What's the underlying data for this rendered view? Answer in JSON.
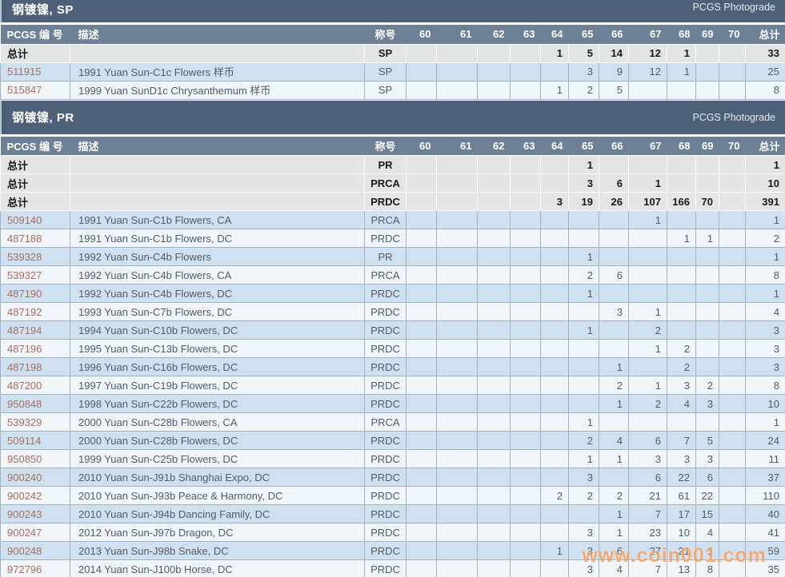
{
  "watermark": "www.coin001.com",
  "colors": {
    "section_bar": "#4d6078",
    "table_header": "#6d8096",
    "row_blue": "#cfe0f0",
    "row_light": "#f0f5fa",
    "row_total": "#e3e4e6",
    "pcgs_number_link": "#a8705b",
    "watermark_orange": "#f4964a"
  },
  "columns": [
    "PCGS 编 号",
    "描述",
    "称号",
    "60",
    "61",
    "62",
    "63",
    "64",
    "65",
    "66",
    "67",
    "68",
    "69",
    "70",
    "总计"
  ],
  "column_keys": [
    "pcgs-number",
    "description",
    "designation",
    "60",
    "61",
    "62",
    "63",
    "64",
    "65",
    "66",
    "67",
    "68",
    "69",
    "70",
    "total"
  ],
  "sections": [
    {
      "title": "钢镀镍, SP",
      "photograde_label": "PCGS Photograde",
      "total_rows": [
        {
          "label": "总计",
          "desc": "",
          "designation": "SP",
          "grades": [
            "",
            "",
            "",
            "",
            "1",
            "5",
            "14",
            "12",
            "1",
            "",
            ""
          ],
          "total": "33"
        }
      ],
      "rows": [
        {
          "id": "511915",
          "desc": "1991 Yuan Sun-C1c Flowers 样币",
          "designation": "SP",
          "grades": [
            "",
            "",
            "",
            "",
            "",
            "3",
            "9",
            "12",
            "1",
            "",
            ""
          ],
          "total": "25"
        },
        {
          "id": "515847",
          "desc": "1999 Yuan SunD1c Chrysanthemum 样币",
          "designation": "SP",
          "grades": [
            "",
            "",
            "",
            "",
            "1",
            "2",
            "5",
            "",
            "",
            "",
            ""
          ],
          "total": "8"
        }
      ]
    },
    {
      "title": "钢镀镍, PR",
      "photograde_label": "PCGS Photograde",
      "total_rows": [
        {
          "label": "总计",
          "desc": "",
          "designation": "PR",
          "grades": [
            "",
            "",
            "",
            "",
            "",
            "1",
            "",
            "",
            "",
            "",
            ""
          ],
          "total": "1"
        },
        {
          "label": "总计",
          "desc": "",
          "designation": "PRCA",
          "grades": [
            "",
            "",
            "",
            "",
            "",
            "3",
            "6",
            "1",
            "",
            "",
            ""
          ],
          "total": "10"
        },
        {
          "label": "总计",
          "desc": "",
          "designation": "PRDC",
          "grades": [
            "",
            "",
            "",
            "",
            "3",
            "19",
            "26",
            "107",
            "166",
            "70",
            ""
          ],
          "total": "391"
        }
      ],
      "rows": [
        {
          "id": "509140",
          "desc": "1991 Yuan Sun-C1b Flowers, CA",
          "designation": "PRCA",
          "grades": [
            "",
            "",
            "",
            "",
            "",
            "",
            "",
            "1",
            "",
            "",
            ""
          ],
          "total": "1"
        },
        {
          "id": "487188",
          "desc": "1991 Yuan Sun-C1b Flowers, DC",
          "designation": "PRDC",
          "grades": [
            "",
            "",
            "",
            "",
            "",
            "",
            "",
            "",
            "1",
            "1",
            ""
          ],
          "total": "2"
        },
        {
          "id": "539328",
          "desc": "1992 Yuan Sun-C4b Flowers",
          "designation": "PR",
          "grades": [
            "",
            "",
            "",
            "",
            "",
            "1",
            "",
            "",
            "",
            "",
            ""
          ],
          "total": "1"
        },
        {
          "id": "539327",
          "desc": "1992 Yuan Sun-C4b Flowers, CA",
          "designation": "PRCA",
          "grades": [
            "",
            "",
            "",
            "",
            "",
            "2",
            "6",
            "",
            "",
            "",
            ""
          ],
          "total": "8"
        },
        {
          "id": "487190",
          "desc": "1992 Yuan Sun-C4b Flowers, DC",
          "designation": "PRDC",
          "grades": [
            "",
            "",
            "",
            "",
            "",
            "1",
            "",
            "",
            "",
            "",
            ""
          ],
          "total": "1"
        },
        {
          "id": "487192",
          "desc": "1993 Yuan Sun-C7b Flowers, DC",
          "designation": "PRDC",
          "grades": [
            "",
            "",
            "",
            "",
            "",
            "",
            "3",
            "1",
            "",
            "",
            ""
          ],
          "total": "4"
        },
        {
          "id": "487194",
          "desc": "1994 Yuan Sun-C10b Flowers, DC",
          "designation": "PRDC",
          "grades": [
            "",
            "",
            "",
            "",
            "",
            "1",
            "",
            "2",
            "",
            "",
            ""
          ],
          "total": "3"
        },
        {
          "id": "487196",
          "desc": "1995 Yuan Sun-C13b Flowers, DC",
          "designation": "PRDC",
          "grades": [
            "",
            "",
            "",
            "",
            "",
            "",
            "",
            "1",
            "2",
            "",
            ""
          ],
          "total": "3"
        },
        {
          "id": "487198",
          "desc": "1996 Yuan Sun-C16b Flowers, DC",
          "designation": "PRDC",
          "grades": [
            "",
            "",
            "",
            "",
            "",
            "",
            "1",
            "",
            "2",
            "",
            ""
          ],
          "total": "3"
        },
        {
          "id": "487200",
          "desc": "1997 Yuan Sun-C19b Flowers, DC",
          "designation": "PRDC",
          "grades": [
            "",
            "",
            "",
            "",
            "",
            "",
            "2",
            "1",
            "3",
            "2",
            ""
          ],
          "total": "8"
        },
        {
          "id": "950848",
          "desc": "1998 Yuan Sun-C22b Flowers, DC",
          "designation": "PRDC",
          "grades": [
            "",
            "",
            "",
            "",
            "",
            "",
            "1",
            "2",
            "4",
            "3",
            ""
          ],
          "total": "10"
        },
        {
          "id": "539329",
          "desc": "2000 Yuan Sun-C28b Flowers, CA",
          "designation": "PRCA",
          "grades": [
            "",
            "",
            "",
            "",
            "",
            "1",
            "",
            "",
            "",
            "",
            ""
          ],
          "total": "1"
        },
        {
          "id": "509114",
          "desc": "2000 Yuan Sun-C28b Flowers, DC",
          "designation": "PRDC",
          "grades": [
            "",
            "",
            "",
            "",
            "",
            "2",
            "4",
            "6",
            "7",
            "5",
            ""
          ],
          "total": "24"
        },
        {
          "id": "950850",
          "desc": "1999 Yuan Sun-C25b Flowers, DC",
          "designation": "PRDC",
          "grades": [
            "",
            "",
            "",
            "",
            "",
            "1",
            "1",
            "3",
            "3",
            "3",
            ""
          ],
          "total": "11"
        },
        {
          "id": "900240",
          "desc": "2010 Yuan Sun-J91b Shanghai Expo, DC",
          "designation": "PRDC",
          "grades": [
            "",
            "",
            "",
            "",
            "",
            "3",
            "",
            "6",
            "22",
            "6",
            ""
          ],
          "total": "37"
        },
        {
          "id": "900242",
          "desc": "2010 Yuan Sun-J93b Peace & Harmony, DC",
          "designation": "PRDC",
          "grades": [
            "",
            "",
            "",
            "",
            "2",
            "2",
            "2",
            "21",
            "61",
            "22",
            ""
          ],
          "total": "110"
        },
        {
          "id": "900243",
          "desc": "2010 Yuan Sun-J94b Dancing Family, DC",
          "designation": "PRDC",
          "grades": [
            "",
            "",
            "",
            "",
            "",
            "",
            "1",
            "7",
            "17",
            "15",
            ""
          ],
          "total": "40"
        },
        {
          "id": "900247",
          "desc": "2012 Yuan Sun-J97b Dragon, DC",
          "designation": "PRDC",
          "grades": [
            "",
            "",
            "",
            "",
            "",
            "3",
            "1",
            "23",
            "10",
            "4",
            ""
          ],
          "total": "41"
        },
        {
          "id": "900248",
          "desc": "2013 Yuan Sun-J98b Snake, DC",
          "designation": "PRDC",
          "grades": [
            "",
            "",
            "",
            "",
            "1",
            "3",
            "6",
            "27",
            "21",
            "1",
            ""
          ],
          "total": "59"
        },
        {
          "id": "972796",
          "desc": "2014 Yuan Sun-J100b Horse, DC",
          "designation": "PRDC",
          "grades": [
            "",
            "",
            "",
            "",
            "",
            "3",
            "4",
            "7",
            "13",
            "8",
            ""
          ],
          "total": "35"
        }
      ]
    }
  ]
}
